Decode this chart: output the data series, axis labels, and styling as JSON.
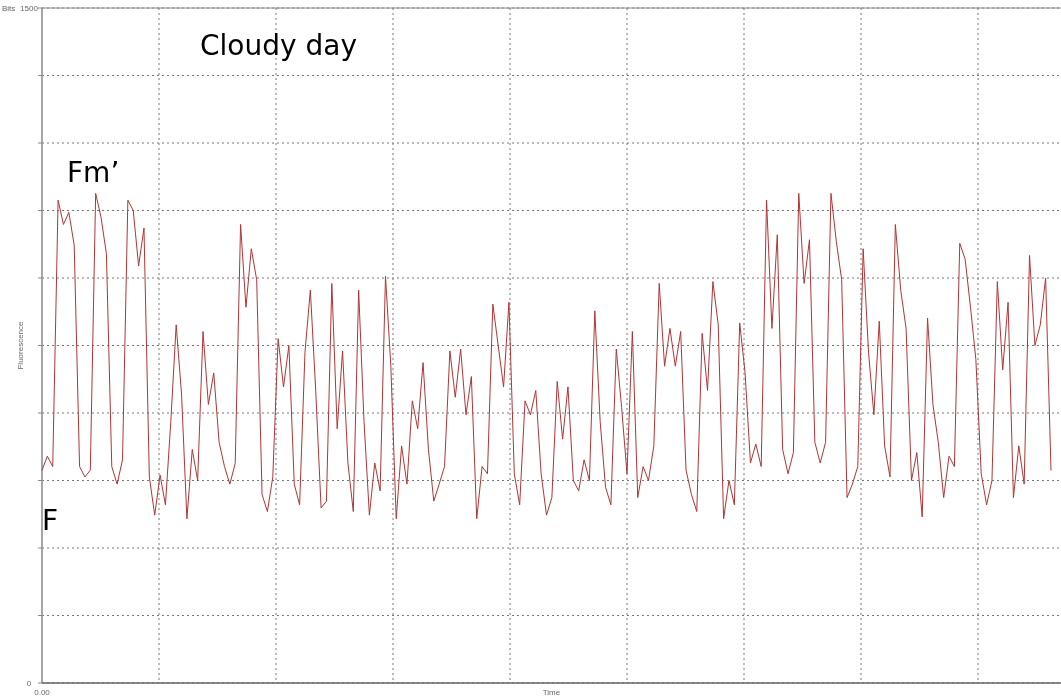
{
  "chart_data": {
    "type": "line",
    "xlabel": "Time",
    "ylabel": "Fluorescence",
    "annotations": [
      "Cloudy day",
      "Fm’",
      "F",
      "Bits"
    ],
    "categories": [
      "0.00",
      null,
      null,
      null,
      null,
      null,
      null,
      null,
      null,
      null,
      null,
      null,
      null,
      null,
      null,
      null,
      null,
      null,
      null,
      null,
      null,
      null,
      null,
      null,
      null,
      null,
      null,
      null,
      null,
      null,
      null,
      null,
      null,
      null,
      null,
      null,
      null,
      null,
      null,
      null,
      null,
      null,
      null,
      null,
      null,
      null,
      null,
      null,
      null,
      null,
      null,
      null,
      null,
      null,
      null,
      null,
      null,
      null,
      null,
      null,
      null,
      null,
      null,
      null,
      null,
      null,
      null,
      null,
      null,
      null,
      null,
      null,
      null,
      null,
      null,
      null,
      null,
      null,
      null,
      null,
      null,
      null,
      null,
      null,
      null,
      null,
      null,
      null,
      null,
      null,
      null,
      null,
      null,
      null,
      null,
      null,
      null,
      null,
      null,
      null,
      null,
      null,
      null,
      null,
      null,
      null,
      null,
      null,
      null,
      null,
      null,
      null,
      null,
      null,
      null,
      null,
      null,
      null,
      null,
      null,
      null,
      null,
      null,
      null,
      null,
      null,
      null,
      null,
      null,
      null,
      null,
      null,
      null,
      null,
      null,
      null,
      null,
      null,
      null,
      null,
      null,
      null,
      null,
      null,
      null,
      null,
      null,
      null,
      null,
      null,
      null,
      null,
      null,
      null,
      null,
      null,
      null,
      null,
      null,
      null,
      null,
      null,
      null,
      null,
      null,
      null,
      null,
      null,
      null,
      null,
      null,
      null,
      null,
      null,
      null,
      null,
      null,
      null,
      null,
      null,
      null,
      null,
      null,
      null,
      null,
      null,
      null,
      null,
      null
    ],
    "ylim": [
      0,
      1500
    ],
    "yticks": [
      0,
      {
        "value": 150,
        "label": null
      },
      {
        "value": 300,
        "label": null
      },
      {
        "value": 450,
        "label": null
      },
      {
        "value": 600,
        "label": null
      },
      {
        "value": 750,
        "label": null
      },
      {
        "value": 900,
        "label": null
      },
      {
        "value": 1050,
        "label": null
      },
      {
        "value": 1200,
        "label": null
      },
      {
        "value": 1350,
        "label": null
      },
      1500
    ],
    "grid": true,
    "marker": "none",
    "line_style": "solid",
    "series": [
      {
        "color": "#b03535",
        "values": [
          473,
          504,
          481,
          1073,
          1019,
          1046,
          973,
          481,
          458,
          473,
          1088,
          1035,
          954,
          481,
          442,
          496,
          1073,
          1050,
          927,
          1011,
          458,
          373,
          462,
          396,
          581,
          796,
          642,
          365,
          519,
          450,
          781,
          619,
          689,
          535,
          481,
          442,
          488,
          1019,
          835,
          965,
          896,
          419,
          381,
          458,
          765,
          658,
          750,
          442,
          396,
          735,
          873,
          650,
          389,
          404,
          888,
          565,
          738,
          489,
          381,
          873,
          581,
          373,
          489,
          427,
          904,
          704,
          365,
          527,
          442,
          627,
          565,
          712,
          519,
          404,
          442,
          481,
          738,
          635,
          742,
          596,
          681,
          365,
          481,
          465,
          842,
          750,
          658,
          846,
          465,
          396,
          627,
          596,
          650,
          465,
          373,
          412,
          670,
          542,
          658,
          450,
          427,
          496,
          450,
          827,
          581,
          435,
          396,
          742,
          612,
          465,
          781,
          412,
          481,
          450,
          527,
          888,
          704,
          788,
          704,
          781,
          473,
          419,
          381,
          777,
          650,
          892,
          796,
          365,
          450,
          396,
          800,
          689,
          489,
          531,
          481,
          1073,
          788,
          996,
          519,
          465,
          512,
          1088,
          888,
          985,
          535,
          489,
          535,
          1088,
          981,
          896,
          412,
          442,
          481,
          965,
          735,
          596,
          804,
          527,
          458,
          1019,
          873,
          788,
          450,
          512,
          369,
          811,
          619,
          535,
          412,
          504,
          481,
          977,
          942,
          835,
          719,
          465,
          396,
          450,
          892,
          696,
          846,
          412,
          527,
          442,
          950,
          750,
          796,
          900,
          473
        ]
      }
    ]
  }
}
